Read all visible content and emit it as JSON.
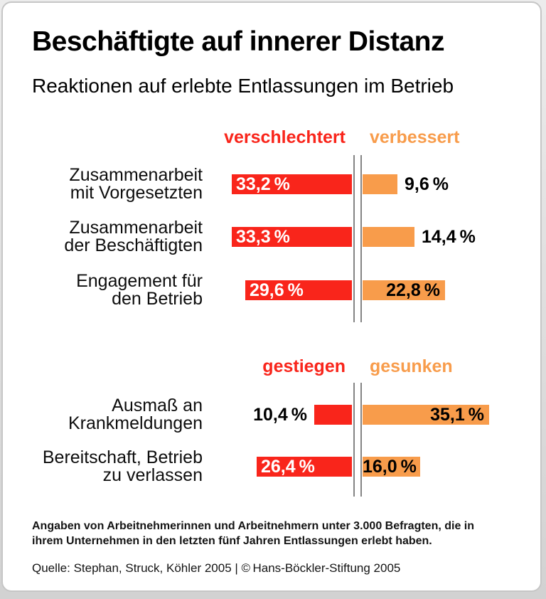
{
  "header": {
    "title": "Beschäftigte auf innerer Distanz",
    "subtitle": "Reaktionen auf erlebte Entlassungen im Betrieb"
  },
  "colors": {
    "negative": "#F9251B",
    "positive": "#F89C4B",
    "axis": "#848484",
    "value_inside_negative": "#FFFFFF",
    "value_text": "#000000"
  },
  "chart_data": {
    "type": "bar",
    "orientation": "horizontal-diverging",
    "unit": "%",
    "zero_axis": "double vertical gray line between left and right bars",
    "legend_position": "headers above each bar group",
    "groups": [
      {
        "left_header": "verschlechtert",
        "right_header": "verbessert",
        "rows": [
          {
            "category_lines": [
              "Zusammenarbeit",
              "mit Vorgesetzten"
            ],
            "left_value": 33.2,
            "left_label": "33,2 %",
            "left_label_placement": "inside",
            "right_value": 9.6,
            "right_label": "9,6 %",
            "right_label_placement": "outside"
          },
          {
            "category_lines": [
              "Zusammenarbeit",
              "der Beschäftigten"
            ],
            "left_value": 33.3,
            "left_label": "33,3 %",
            "left_label_placement": "inside",
            "right_value": 14.4,
            "right_label": "14,4 %",
            "right_label_placement": "outside"
          },
          {
            "category_lines": [
              "Engagement für",
              "den Betrieb"
            ],
            "left_value": 29.6,
            "left_label": "29,6 %",
            "left_label_placement": "inside",
            "right_value": 22.8,
            "right_label": "22,8 %",
            "right_label_placement": "inside"
          }
        ]
      },
      {
        "left_header": "gestiegen",
        "right_header": "gesunken",
        "rows": [
          {
            "category_lines": [
              "Ausmaß an",
              "Krankmeldungen"
            ],
            "left_value": 10.4,
            "left_label": "10,4 %",
            "left_label_placement": "outside",
            "right_value": 35.1,
            "right_label": "35,1 %",
            "right_label_placement": "inside"
          },
          {
            "category_lines": [
              "Bereitschaft, Betrieb",
              "zu verlassen"
            ],
            "left_value": 26.4,
            "left_label": "26,4 %",
            "left_label_placement": "inside",
            "right_value": 16.0,
            "right_label": "16,0 %",
            "right_label_placement": "inside"
          }
        ]
      }
    ]
  },
  "footer": {
    "footnote_lines": [
      "Angaben von Arbeitnehmerinnen und Arbeitnehmern unter 3.000 Befragten, die in",
      "ihrem Unternehmen in den letzten fünf Jahren Entlassungen erlebt haben."
    ],
    "source": "Quelle: Stephan, Struck, Köhler 2005 | © Hans-Böckler-Stiftung 2005"
  }
}
